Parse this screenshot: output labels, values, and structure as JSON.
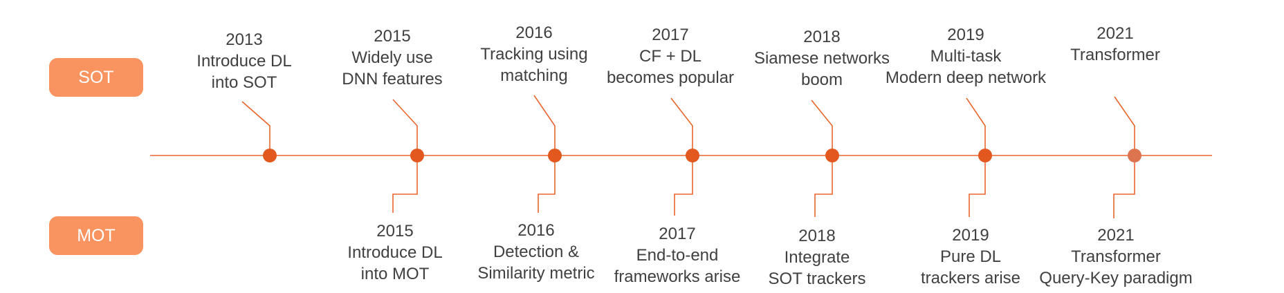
{
  "colors": {
    "badge_fill": "#f9935f",
    "line": "#e8652b",
    "dot": "#e3581f",
    "dot_last": "#de7350",
    "text": "#404040"
  },
  "labels": {
    "sot": "SOT",
    "mot": "MOT"
  },
  "sot_events": [
    {
      "year": "2013",
      "lines": [
        "Introduce DL",
        "into SOT"
      ]
    },
    {
      "year": "2015",
      "lines": [
        "Widely use",
        "DNN features"
      ]
    },
    {
      "year": "2016",
      "lines": [
        "Tracking using",
        "matching"
      ]
    },
    {
      "year": "2017",
      "lines": [
        "CF + DL",
        "becomes popular"
      ]
    },
    {
      "year": "2018",
      "lines": [
        "Siamese networks",
        "boom"
      ]
    },
    {
      "year": "2019",
      "lines": [
        "Multi-task",
        "Modern deep network"
      ]
    },
    {
      "year": "2021",
      "lines": [
        "Transformer"
      ]
    }
  ],
  "mot_events": [
    {
      "year": "2015",
      "lines": [
        "Introduce DL",
        "into MOT"
      ]
    },
    {
      "year": "2016",
      "lines": [
        "Detection &",
        "Similarity metric"
      ]
    },
    {
      "year": "2017",
      "lines": [
        "End-to-end",
        "frameworks arise"
      ]
    },
    {
      "year": "2018",
      "lines": [
        "Integrate",
        "SOT trackers"
      ]
    },
    {
      "year": "2019",
      "lines": [
        "Pure DL",
        "trackers arise"
      ]
    },
    {
      "year": "2021",
      "lines": [
        "Transformer",
        "Query-Key paradigm"
      ]
    }
  ]
}
